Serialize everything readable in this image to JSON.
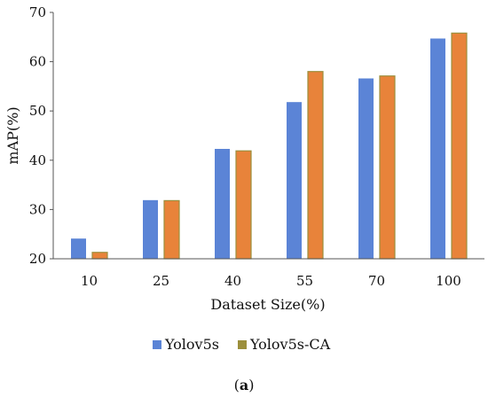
{
  "chart_data": {
    "type": "bar",
    "categories": [
      "10",
      "25",
      "40",
      "55",
      "70",
      "100"
    ],
    "series": [
      {
        "name": "Yolov5s",
        "values": [
          24.1,
          31.9,
          42.3,
          51.8,
          56.6,
          64.7
        ],
        "color": "#5b84d6"
      },
      {
        "name": "Yolov5s-CA",
        "values": [
          21.3,
          31.8,
          41.9,
          58.0,
          57.1,
          65.8
        ],
        "color": "#e8833a",
        "edge_color": "#9c8f3c"
      }
    ],
    "xlabel": "Dataset Size(%)",
    "ylabel": "mAP(%)",
    "ylim": [
      20,
      70
    ],
    "yticks": [
      20,
      30,
      40,
      50,
      60,
      70
    ],
    "grid": false,
    "legend_position": "bottom"
  },
  "caption": {
    "open": "(",
    "letter": "a",
    "close": ")"
  }
}
